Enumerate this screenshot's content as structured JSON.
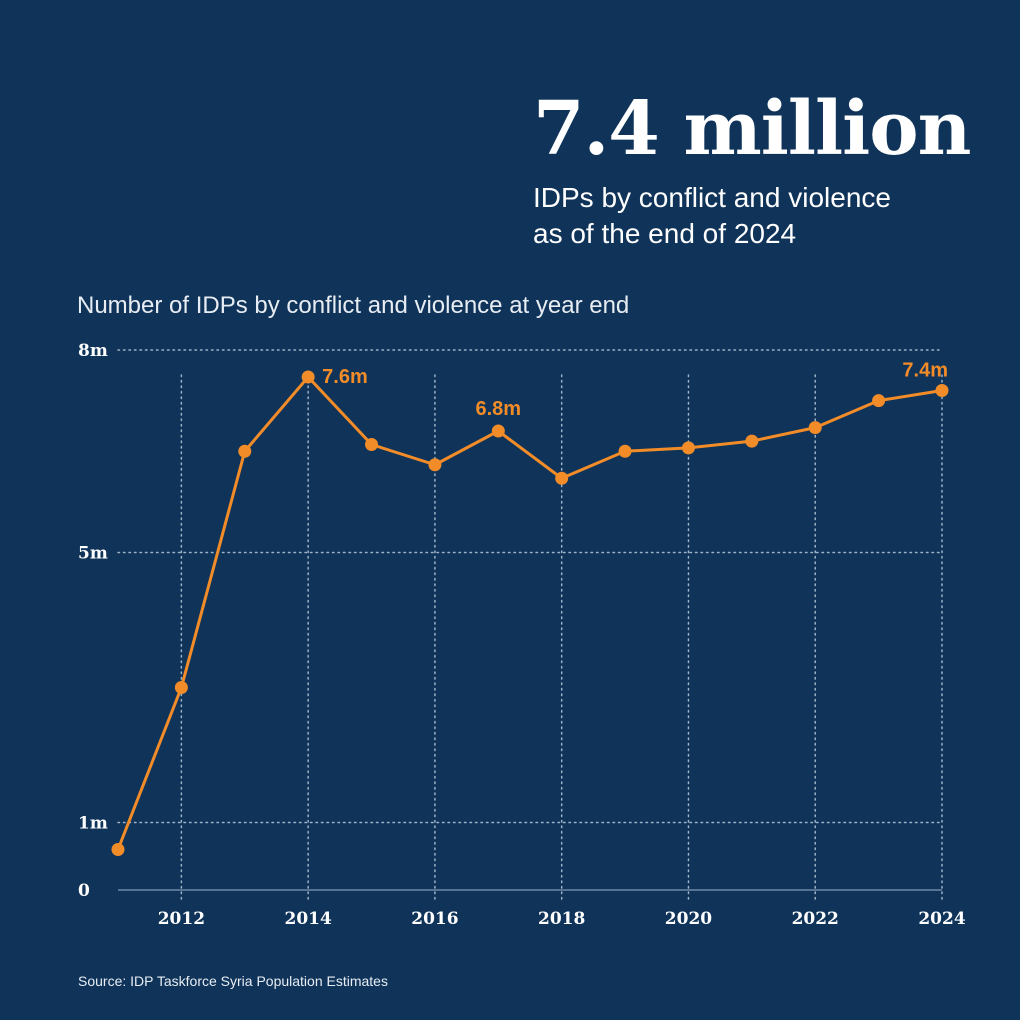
{
  "header": {
    "headline": "7.4 million",
    "subline_1": "IDPs by conflict and violence",
    "subline_2": "as of the end of 2024"
  },
  "source": "Source: IDP Taskforce Syria Population Estimates",
  "colors": {
    "background": "#0f3359",
    "line": "#f28c28",
    "text": "#ffffff",
    "grid": "#9fb3c8"
  },
  "chart_data": {
    "type": "line",
    "title": "Number of IDPs by conflict and violence at year end",
    "xlabel": "",
    "ylabel": "",
    "x": [
      2011,
      2012,
      2013,
      2014,
      2015,
      2016,
      2017,
      2018,
      2019,
      2020,
      2021,
      2022,
      2023,
      2024
    ],
    "series": [
      {
        "values": [
          0.6,
          3.0,
          6.5,
          7.6,
          6.6,
          6.3,
          6.8,
          6.1,
          6.5,
          6.55,
          6.65,
          6.85,
          7.25,
          7.4
        ]
      }
    ],
    "ylim": [
      0,
      8
    ],
    "y_ticks": [
      {
        "value": 0,
        "label": "0"
      },
      {
        "value": 1,
        "label": "1m"
      },
      {
        "value": 5,
        "label": "5m"
      },
      {
        "value": 8,
        "label": "8m"
      }
    ],
    "x_ticks": [
      "2012",
      "2014",
      "2016",
      "2018",
      "2020",
      "2022",
      "2024"
    ],
    "annotations": [
      {
        "x": 2014,
        "y": 7.6,
        "label": "7.6m",
        "position": "right"
      },
      {
        "x": 2017,
        "y": 6.8,
        "label": "6.8m",
        "position": "above"
      },
      {
        "x": 2024,
        "y": 7.4,
        "label": "7.4m",
        "position": "above"
      }
    ],
    "grid": true,
    "legend": false
  }
}
